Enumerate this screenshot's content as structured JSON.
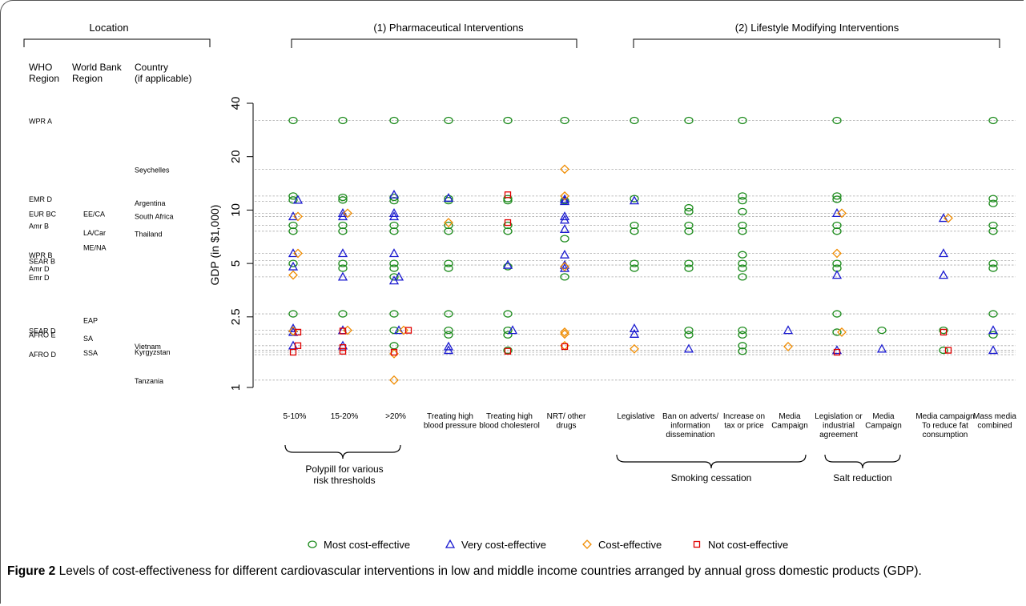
{
  "figure": {
    "caption_label": "Figure 2",
    "caption_text": "Levels of cost-effectiveness for different cardiovascular interventions in low and middle income countries arranged by annual gross domestic products (GDP)."
  },
  "location": {
    "header": "Location",
    "columns": [
      "WHO\nRegion",
      "World Bank\nRegion",
      "Country\n(if applicable)"
    ],
    "who_regions": [
      {
        "label": "WPR A",
        "gdp": 32
      },
      {
        "label": "EMR D",
        "gdp": 11.6
      },
      {
        "label": "EUR BC",
        "gdp": 9.6
      },
      {
        "label": "Amr B",
        "gdp": 8.2
      },
      {
        "label": "WPR B",
        "gdp": 5.6
      },
      {
        "label": "SEAR B",
        "gdp": 5.2
      },
      {
        "label": "Amr D",
        "gdp": 4.7
      },
      {
        "label": "Emr D",
        "gdp": 4.2
      },
      {
        "label": "SEAR D",
        "gdp": 2.1
      },
      {
        "label": "AFRO E",
        "gdp": 2.0
      },
      {
        "label": "AFRO D",
        "gdp": 1.55
      }
    ],
    "wb_regions": [
      {
        "label": "EE/CA",
        "gdp": 9.6
      },
      {
        "label": "LA/Car",
        "gdp": 7.5
      },
      {
        "label": "ME/NA",
        "gdp": 6.2
      },
      {
        "label": "EAP",
        "gdp": 2.4
      },
      {
        "label": "SA",
        "gdp": 1.9
      },
      {
        "label": "SSA",
        "gdp": 1.58
      }
    ],
    "countries": [
      {
        "label": "Seychelles",
        "gdp": 17
      },
      {
        "label": "Argentina",
        "gdp": 11
      },
      {
        "label": "South Africa",
        "gdp": 9.3
      },
      {
        "label": "Thailand",
        "gdp": 7.4
      },
      {
        "label": "Vietnam",
        "gdp": 1.72
      },
      {
        "label": "Kyrgyzstan",
        "gdp": 1.6
      },
      {
        "label": "Tanzania",
        "gdp": 1.1
      }
    ]
  },
  "groups": {
    "pharma": "(1) Pharmaceutical Interventions",
    "lifestyle": "(2) Lifestyle Modifying Interventions"
  },
  "subgroups": {
    "polypill": "Polypill for various\nrisk thresholds",
    "smoking": "Smoking cessation",
    "salt": "Salt reduction"
  },
  "legend": [
    {
      "key": "most",
      "label": "Most cost-effective",
      "color": "#1a8a1a",
      "symbol": "circle"
    },
    {
      "key": "very",
      "label": "Very cost-effective",
      "color": "#1a1ad0",
      "symbol": "triangle"
    },
    {
      "key": "ce",
      "label": "Cost-effective",
      "color": "#f08c00",
      "symbol": "diamond"
    },
    {
      "key": "not",
      "label": "Not cost-effective",
      "color": "#e00000",
      "symbol": "square"
    }
  ],
  "chart_data": {
    "type": "scatter",
    "ylabel": "GDP (in $1,000)",
    "yscale": "log",
    "ylim": [
      1,
      40
    ],
    "yticks": [
      1,
      2.5,
      5,
      10,
      20,
      40
    ],
    "ytick_labels": [
      "1",
      "2.5",
      "5",
      "10",
      "20",
      "40"
    ],
    "reference_lines": [
      32,
      17,
      12,
      11.2,
      9.6,
      9.2,
      8.2,
      7.6,
      5.7,
      5.2,
      4.9,
      4.2,
      2.6,
      2.1,
      2.0,
      1.72,
      1.62,
      1.58,
      1.53,
      1.1
    ],
    "categories": [
      "5-10%",
      "15-20%",
      ">20%",
      "Treating high\nblood pressure",
      "Treating high\nblood cholesterol",
      "NRT/ other\ndrugs",
      "Legislative",
      "Ban on adverts/\ninformation\ndissemination",
      "Increase on\ntax or price",
      "Media\nCampaign",
      "Legislation or\nindustrial\nagreement",
      "Media\nCampaign",
      "Media campaign\nTo reduce fat\nconsumption",
      "Mass media\ncombined"
    ],
    "series": [
      {
        "name": "Most cost-effective",
        "points": [
          [
            0,
            32
          ],
          [
            1,
            32
          ],
          [
            2,
            32
          ],
          [
            3,
            32
          ],
          [
            4,
            32
          ],
          [
            5,
            32
          ],
          [
            6,
            32
          ],
          [
            7,
            32
          ],
          [
            8,
            32
          ],
          [
            10,
            32
          ],
          [
            13,
            32
          ],
          [
            0,
            12
          ],
          [
            0,
            11.4
          ],
          [
            1,
            11.8
          ],
          [
            1,
            11.4
          ],
          [
            2,
            11.8
          ],
          [
            2,
            11.3
          ],
          [
            3,
            11.6
          ],
          [
            3,
            11.3
          ],
          [
            4,
            11.6
          ],
          [
            4,
            11.3
          ],
          [
            5,
            11.3
          ],
          [
            6,
            11.6
          ],
          [
            7,
            10.3
          ],
          [
            7,
            9.8
          ],
          [
            8,
            12
          ],
          [
            8,
            11.3
          ],
          [
            8,
            9.8
          ],
          [
            10,
            12
          ],
          [
            10,
            11.5
          ],
          [
            13,
            11.6
          ],
          [
            13,
            10.9
          ],
          [
            0,
            8.2
          ],
          [
            0,
            7.6
          ],
          [
            1,
            8.2
          ],
          [
            1,
            7.6
          ],
          [
            2,
            8.2
          ],
          [
            2,
            7.6
          ],
          [
            3,
            8.2
          ],
          [
            3,
            7.6
          ],
          [
            4,
            8.2
          ],
          [
            4,
            7.6
          ],
          [
            5,
            6.9
          ],
          [
            6,
            8.2
          ],
          [
            6,
            7.6
          ],
          [
            7,
            8.2
          ],
          [
            7,
            7.6
          ],
          [
            8,
            8.2
          ],
          [
            8,
            7.6
          ],
          [
            8,
            5.6
          ],
          [
            10,
            8.2
          ],
          [
            10,
            7.6
          ],
          [
            13,
            8.2
          ],
          [
            13,
            7.6
          ],
          [
            0,
            5.0
          ],
          [
            1,
            5.0
          ],
          [
            1,
            4.7
          ],
          [
            2,
            5.0
          ],
          [
            2,
            4.7
          ],
          [
            3,
            5.0
          ],
          [
            3,
            4.7
          ],
          [
            4,
            4.8
          ],
          [
            6,
            5.0
          ],
          [
            6,
            4.7
          ],
          [
            7,
            5.0
          ],
          [
            7,
            4.7
          ],
          [
            8,
            5.0
          ],
          [
            8,
            4.7
          ],
          [
            10,
            5.0
          ],
          [
            10,
            4.7
          ],
          [
            13,
            5.0
          ],
          [
            13,
            4.7
          ],
          [
            2,
            4.2
          ],
          [
            5,
            4.2
          ],
          [
            8,
            4.2
          ],
          [
            0,
            2.6
          ],
          [
            1,
            2.6
          ],
          [
            2,
            2.6
          ],
          [
            3,
            2.6
          ],
          [
            4,
            2.6
          ],
          [
            10,
            2.6
          ],
          [
            13,
            2.6
          ],
          [
            2,
            2.1
          ],
          [
            3,
            2.1
          ],
          [
            3,
            1.98
          ],
          [
            4,
            2.1
          ],
          [
            4,
            1.98
          ],
          [
            7,
            2.1
          ],
          [
            7,
            1.98
          ],
          [
            8,
            2.1
          ],
          [
            8,
            1.98
          ],
          [
            10,
            2.05
          ],
          [
            11,
            2.1
          ],
          [
            12,
            2.1
          ],
          [
            13,
            1.98
          ],
          [
            2,
            1.72
          ],
          [
            4,
            1.62
          ],
          [
            8,
            1.72
          ],
          [
            8,
            1.6
          ],
          [
            12,
            1.62
          ]
        ]
      },
      {
        "name": "Very cost-effective",
        "points": [
          [
            0,
            11.4
          ],
          [
            2,
            12.2
          ],
          [
            3,
            11.7
          ],
          [
            5,
            11.5
          ],
          [
            5,
            11.2
          ],
          [
            6,
            11.3
          ],
          [
            0,
            9.2
          ],
          [
            1,
            9.2
          ],
          [
            1,
            9.6
          ],
          [
            2,
            9.6
          ],
          [
            2,
            9.2
          ],
          [
            5,
            9.2
          ],
          [
            5,
            8.8
          ],
          [
            10,
            9.6
          ],
          [
            12,
            9.0
          ],
          [
            0,
            5.7
          ],
          [
            1,
            5.7
          ],
          [
            2,
            5.7
          ],
          [
            5,
            7.8
          ],
          [
            5,
            5.6
          ],
          [
            12,
            5.7
          ],
          [
            0,
            4.8
          ],
          [
            2,
            4.2
          ],
          [
            4,
            4.9
          ],
          [
            5,
            4.9
          ],
          [
            5,
            4.7
          ],
          [
            1,
            4.2
          ],
          [
            2,
            4.0
          ],
          [
            10,
            4.3
          ],
          [
            12,
            4.3
          ],
          [
            0,
            2.15
          ],
          [
            0,
            2.05
          ],
          [
            1,
            2.1
          ],
          [
            2,
            2.1
          ],
          [
            4,
            2.1
          ],
          [
            6,
            2.15
          ],
          [
            6,
            2.0
          ],
          [
            9,
            2.1
          ],
          [
            13,
            2.1
          ],
          [
            0,
            1.72
          ],
          [
            1,
            1.72
          ],
          [
            3,
            1.7
          ],
          [
            3,
            1.62
          ],
          [
            10,
            1.62
          ],
          [
            7,
            1.65
          ],
          [
            11,
            1.65
          ],
          [
            13,
            1.62
          ]
        ]
      },
      {
        "name": "Cost-effective",
        "points": [
          [
            0,
            9.2
          ],
          [
            0,
            5.7
          ],
          [
            0,
            4.3
          ],
          [
            1,
            9.6
          ],
          [
            2,
            2.1
          ],
          [
            3,
            8.5
          ],
          [
            5,
            17
          ],
          [
            5,
            12
          ],
          [
            5,
            4.8
          ],
          [
            10,
            9.6
          ],
          [
            10,
            5.7
          ],
          [
            12,
            9.0
          ],
          [
            0,
            2.08
          ],
          [
            1,
            2.1
          ],
          [
            5,
            2.05
          ],
          [
            5,
            2.0
          ],
          [
            10,
            2.05
          ],
          [
            6,
            1.65
          ],
          [
            9,
            1.7
          ],
          [
            2,
            1.55
          ],
          [
            2,
            1.1
          ],
          [
            5,
            1.72
          ]
        ]
      },
      {
        "name": "Not cost-effective",
        "points": [
          [
            4,
            12.2
          ],
          [
            4,
            8.5
          ],
          [
            0,
            2.05
          ],
          [
            1,
            2.08
          ],
          [
            2,
            2.1
          ],
          [
            12,
            2.05
          ],
          [
            0,
            1.72
          ],
          [
            0,
            1.58
          ],
          [
            1,
            1.68
          ],
          [
            1,
            1.6
          ],
          [
            2,
            1.58
          ],
          [
            4,
            1.6
          ],
          [
            5,
            1.7
          ],
          [
            10,
            1.58
          ],
          [
            12,
            1.62
          ]
        ]
      }
    ]
  }
}
